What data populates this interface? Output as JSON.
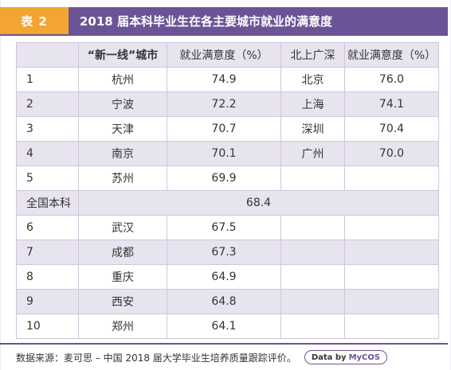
{
  "header": {
    "badge": "表 2",
    "title": "2018 届本科毕业生在各主要城市就业的满意度"
  },
  "table": {
    "columns": [
      "",
      "“新一线”城市",
      "就业满意度（%）",
      "北上广深",
      "就业满意度（%）"
    ],
    "rows": [
      {
        "rank": "1",
        "city": "杭州",
        "value": "74.9",
        "city2": "北京",
        "value2": "76.0"
      },
      {
        "rank": "2",
        "city": "宁波",
        "value": "72.2",
        "city2": "上海",
        "value2": "74.1"
      },
      {
        "rank": "3",
        "city": "天津",
        "value": "70.7",
        "city2": "深圳",
        "value2": "70.4"
      },
      {
        "rank": "4",
        "city": "南京",
        "value": "70.1",
        "city2": "广州",
        "value2": "70.0"
      },
      {
        "rank": "5",
        "city": "苏州",
        "value": "69.9",
        "city2": "",
        "value2": ""
      }
    ],
    "national": {
      "label": "全国本科",
      "value": "68.4"
    },
    "rows_after": [
      {
        "rank": "6",
        "city": "武汉",
        "value": "67.5"
      },
      {
        "rank": "7",
        "city": "成都",
        "value": "67.3"
      },
      {
        "rank": "8",
        "city": "重庆",
        "value": "64.9"
      },
      {
        "rank": "9",
        "city": "西安",
        "value": "64.8"
      },
      {
        "rank": "10",
        "city": "郑州",
        "value": "64.1"
      }
    ]
  },
  "footer": {
    "source": "数据来源：麦可思 – 中国 2018 届大学毕业生培养质量跟踪评价。",
    "logo_prefix": "Data by",
    "logo_brand": "MyCOS"
  },
  "colors": {
    "accent_orange": "#f3a531",
    "accent_purple": "#6b5396",
    "row_shade": "#e8e4ef"
  }
}
